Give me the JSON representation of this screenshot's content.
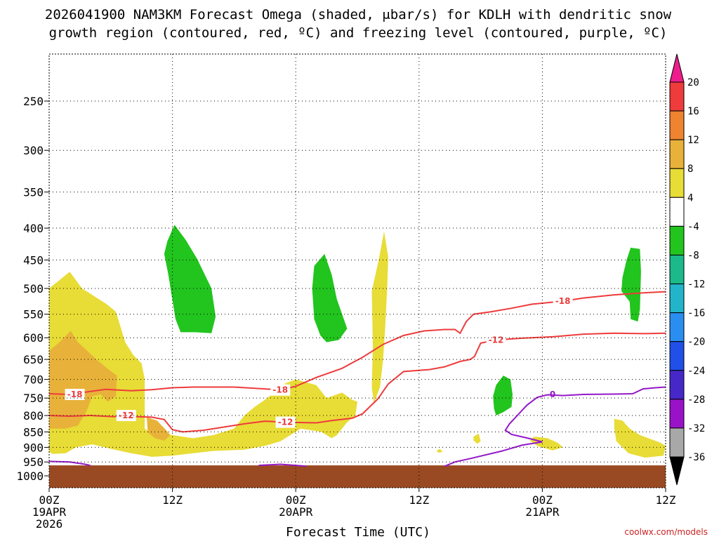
{
  "chart_data": {
    "type": "time-height cross section",
    "title_line1": "2026041900 NAM3KM Forecast Omega (shaded, μbar/s) for KDLH with dendritic snow",
    "title_line2": "growth region (contoured, red, ºC) and freezing level (contoured, purple, ºC)",
    "xlabel": "Forecast Time (UTC)",
    "credit": "coolwx.com/models",
    "x_range_hours": [
      0,
      60
    ],
    "y_range_hPa": [
      1000,
      200
    ],
    "y_scale": "log-pressure",
    "y_ticks": [
      250,
      300,
      350,
      400,
      450,
      500,
      550,
      600,
      650,
      700,
      750,
      800,
      850,
      900,
      950,
      1000
    ],
    "x_ticks": [
      {
        "h": 0,
        "l1": "00Z",
        "l2": "19APR",
        "l3": "2026"
      },
      {
        "h": 12,
        "l1": "12Z",
        "l2": "",
        "l3": ""
      },
      {
        "h": 24,
        "l1": "00Z",
        "l2": "20APR",
        "l3": ""
      },
      {
        "h": 36,
        "l1": "12Z",
        "l2": "",
        "l3": ""
      },
      {
        "h": 48,
        "l1": "00Z",
        "l2": "21APR",
        "l3": ""
      },
      {
        "h": 60,
        "l1": "12Z",
        "l2": "",
        "l3": ""
      }
    ],
    "grid": true,
    "colorbar": {
      "label_values": [
        "20",
        "16",
        "12",
        "8",
        "4",
        "-4",
        "-8",
        "-12",
        "-16",
        "-20",
        "-24",
        "-28",
        "-32",
        "-36"
      ],
      "colors": [
        "#ee1c8c",
        "#ee3b3b",
        "#ee8330",
        "#e8b23a",
        "#e8dc36",
        "#ffffff",
        "#22c41e",
        "#1cb98a",
        "#22b5c9",
        "#2a8ef0",
        "#2050e8",
        "#4628c8",
        "#9a12c8",
        "#a8a8a8",
        "#000000"
      ]
    },
    "ground_color": "#9a4a22",
    "omega_regions": [
      {
        "name": "ascent-green",
        "color": "#22c41e",
        "pts": [
          [
            11.5,
            420
          ],
          [
            12.2,
            395
          ],
          [
            13.3,
            418
          ],
          [
            14.4,
            448
          ],
          [
            15.8,
            500
          ],
          [
            16.2,
            555
          ],
          [
            15.8,
            590
          ],
          [
            14.2,
            588
          ],
          [
            12.8,
            588
          ],
          [
            12.3,
            560
          ],
          [
            11.6,
            475
          ],
          [
            11.2,
            440
          ]
        ]
      },
      {
        "name": "ascent-green",
        "color": "#22c41e",
        "pts": [
          [
            25.8,
            460
          ],
          [
            26.8,
            440
          ],
          [
            27.5,
            475
          ],
          [
            28.0,
            520
          ],
          [
            29.0,
            580
          ],
          [
            28.2,
            605
          ],
          [
            27.0,
            610
          ],
          [
            26.4,
            595
          ],
          [
            25.8,
            560
          ],
          [
            25.6,
            500
          ]
        ]
      },
      {
        "name": "ascent-green",
        "color": "#22c41e",
        "pts": [
          [
            43.2,
            745
          ],
          [
            43.5,
            715
          ],
          [
            44.2,
            690
          ],
          [
            44.9,
            700
          ],
          [
            45.1,
            740
          ],
          [
            45.0,
            775
          ],
          [
            44.2,
            790
          ],
          [
            43.5,
            800
          ],
          [
            43.3,
            780
          ]
        ]
      },
      {
        "name": "ascent-green",
        "color": "#22c41e",
        "pts": [
          [
            55.8,
            480
          ],
          [
            56.2,
            450
          ],
          [
            56.6,
            430
          ],
          [
            57.5,
            432
          ],
          [
            57.6,
            470
          ],
          [
            57.5,
            540
          ],
          [
            57.3,
            565
          ],
          [
            56.6,
            560
          ],
          [
            56.5,
            525
          ],
          [
            55.7,
            505
          ]
        ]
      },
      {
        "name": "descent-yellow",
        "color": "#e8dc36",
        "pts": [
          [
            0.0,
            500
          ],
          [
            1.0,
            485
          ],
          [
            2.0,
            470
          ],
          [
            3.2,
            500
          ],
          [
            5.6,
            530
          ],
          [
            6.5,
            545
          ],
          [
            7.4,
            610
          ],
          [
            8.2,
            640
          ],
          [
            9.0,
            660
          ],
          [
            9.3,
            700
          ],
          [
            9.3,
            840
          ],
          [
            10.0,
            855
          ],
          [
            12.0,
            860
          ],
          [
            14.0,
            870
          ],
          [
            16.0,
            860
          ],
          [
            18.0,
            840
          ],
          [
            19.0,
            800
          ],
          [
            20.0,
            775
          ],
          [
            21.0,
            755
          ],
          [
            23.0,
            710
          ],
          [
            24.0,
            700
          ],
          [
            26.0,
            715
          ],
          [
            27.0,
            750
          ],
          [
            28.5,
            735
          ],
          [
            29.5,
            755
          ],
          [
            30.0,
            760
          ],
          [
            29.8,
            800
          ],
          [
            29.0,
            820
          ],
          [
            28.0,
            860
          ],
          [
            27.5,
            870
          ],
          [
            26.5,
            850
          ],
          [
            24.5,
            840
          ],
          [
            22.5,
            880
          ],
          [
            21.0,
            895
          ],
          [
            19.0,
            908
          ],
          [
            16.0,
            912
          ],
          [
            12.0,
            928
          ],
          [
            10.0,
            932
          ],
          [
            8.0,
            920
          ],
          [
            6.0,
            905
          ],
          [
            4.2,
            890
          ],
          [
            2.6,
            900
          ],
          [
            1.6,
            920
          ],
          [
            0.3,
            922
          ],
          [
            0.0,
            915
          ]
        ]
      },
      {
        "name": "descent-yellow",
        "color": "#e8dc36",
        "pts": [
          [
            31.4,
            505
          ],
          [
            32.1,
            448
          ],
          [
            32.6,
            405
          ],
          [
            33.0,
            445
          ],
          [
            32.9,
            500
          ],
          [
            32.7,
            580
          ],
          [
            32.5,
            650
          ],
          [
            32.2,
            720
          ],
          [
            31.6,
            765
          ],
          [
            31.4,
            720
          ],
          [
            31.5,
            620
          ]
        ]
      },
      {
        "name": "descent-yellow",
        "color": "#e8dc36",
        "pts": [
          [
            37.7,
            912
          ],
          [
            38.0,
            905
          ],
          [
            38.3,
            915
          ],
          [
            37.9,
            918
          ]
        ]
      },
      {
        "name": "descent-yellow",
        "color": "#e8dc36",
        "pts": [
          [
            41.3,
            865
          ],
          [
            41.8,
            855
          ],
          [
            42.0,
            880
          ],
          [
            41.7,
            888
          ],
          [
            41.3,
            878
          ]
        ]
      },
      {
        "name": "descent-yellow",
        "color": "#e8dc36",
        "pts": [
          [
            47.2,
            865
          ],
          [
            48.5,
            870
          ],
          [
            49.5,
            885
          ],
          [
            50.0,
            900
          ],
          [
            49.0,
            910
          ],
          [
            47.5,
            895
          ],
          [
            46.8,
            878
          ]
        ]
      },
      {
        "name": "descent-yellow",
        "color": "#e8dc36",
        "pts": [
          [
            55.0,
            810
          ],
          [
            55.8,
            815
          ],
          [
            56.5,
            840
          ],
          [
            57.5,
            860
          ],
          [
            59.5,
            885
          ],
          [
            60.0,
            895
          ],
          [
            59.8,
            928
          ],
          [
            58.0,
            935
          ],
          [
            56.4,
            920
          ],
          [
            55.2,
            880
          ],
          [
            55.0,
            840
          ]
        ]
      },
      {
        "name": "descent-orange",
        "color": "#e8b23a",
        "pts": [
          [
            0.0,
            630
          ],
          [
            1.0,
            610
          ],
          [
            2.1,
            585
          ],
          [
            2.8,
            610
          ],
          [
            4.6,
            650
          ],
          [
            5.8,
            675
          ],
          [
            6.6,
            690
          ],
          [
            6.5,
            745
          ],
          [
            5.7,
            760
          ],
          [
            5.0,
            740
          ],
          [
            4.2,
            745
          ],
          [
            3.6,
            790
          ],
          [
            2.8,
            830
          ],
          [
            1.6,
            840
          ],
          [
            0.0,
            840
          ]
        ]
      },
      {
        "name": "descent-orange",
        "color": "#e8b23a",
        "pts": [
          [
            9.5,
            805
          ],
          [
            10.5,
            815
          ],
          [
            11.4,
            845
          ],
          [
            11.8,
            860
          ],
          [
            11.2,
            878
          ],
          [
            10.3,
            870
          ],
          [
            9.6,
            852
          ]
        ]
      }
    ],
    "contours": [
      {
        "name": "dgz -18C",
        "color": "#ee3b3b",
        "label": "-18",
        "label_at": [
          2.5,
          740
        ],
        "pts": [
          [
            0,
            738
          ],
          [
            2,
            740
          ],
          [
            4,
            732
          ],
          [
            5.5,
            726
          ],
          [
            8,
            730
          ],
          [
            10,
            727
          ],
          [
            12,
            722
          ],
          [
            14,
            720
          ],
          [
            18,
            720
          ],
          [
            21,
            725
          ],
          [
            22.5,
            728
          ],
          [
            24,
            718
          ],
          [
            26,
            695
          ],
          [
            28.5,
            672
          ],
          [
            30.5,
            645
          ],
          [
            32.5,
            615
          ],
          [
            34.5,
            595
          ],
          [
            36.5,
            585
          ],
          [
            38.5,
            582
          ],
          [
            39.5,
            582
          ],
          [
            40,
            590
          ],
          [
            40.6,
            565
          ],
          [
            41.3,
            550
          ],
          [
            43,
            545
          ],
          [
            45,
            538
          ],
          [
            47,
            530
          ],
          [
            50,
            524
          ],
          [
            52,
            518
          ],
          [
            55,
            512
          ],
          [
            58,
            508
          ],
          [
            60,
            506
          ]
        ]
      },
      {
        "name": "dgz -12C",
        "color": "#ee3b3b",
        "label": "-12",
        "label_at": [
          7.5,
          800
        ],
        "pts": [
          [
            0,
            800
          ],
          [
            2,
            802
          ],
          [
            4,
            800
          ],
          [
            6,
            803
          ],
          [
            8,
            803
          ],
          [
            10,
            805
          ],
          [
            11.2,
            812
          ],
          [
            12,
            843
          ],
          [
            13,
            850
          ],
          [
            15,
            845
          ],
          [
            17,
            835
          ],
          [
            19,
            825
          ],
          [
            21,
            817
          ],
          [
            23,
            820
          ],
          [
            26,
            822
          ],
          [
            27.5,
            815
          ],
          [
            29.5,
            808
          ],
          [
            30.5,
            795
          ],
          [
            32,
            752
          ],
          [
            33,
            712
          ],
          [
            34.5,
            680
          ],
          [
            37,
            675
          ],
          [
            38.5,
            668
          ],
          [
            40,
            655
          ],
          [
            41,
            650
          ],
          [
            41.4,
            643
          ],
          [
            42,
            612
          ],
          [
            43.5,
            605
          ],
          [
            46,
            601
          ],
          [
            49,
            598
          ],
          [
            52,
            592
          ],
          [
            55,
            590
          ],
          [
            58,
            591
          ],
          [
            60,
            590
          ]
        ]
      },
      {
        "name": "freezing-level 0C",
        "color": "#9418c8",
        "label": "0",
        "label_at": [
          49.0,
          740
        ],
        "pts": [
          [
            0,
            948
          ],
          [
            2,
            950
          ],
          [
            3.5,
            958
          ],
          [
            4,
            962
          ]
        ]
      },
      {
        "name": "freezing-level 0C",
        "color": "#9418c8",
        "label": "",
        "label_at": [],
        "pts": [
          [
            20.4,
            962
          ],
          [
            22.5,
            958
          ],
          [
            24,
            962
          ],
          [
            25,
            965
          ]
        ]
      },
      {
        "name": "freezing-level 0C",
        "color": "#9418c8",
        "label": "",
        "label_at": [],
        "pts": [
          [
            38.5,
            965
          ],
          [
            39.5,
            950
          ],
          [
            41,
            938
          ],
          [
            44,
            913
          ],
          [
            46,
            893
          ],
          [
            48,
            882
          ],
          [
            46.6,
            870
          ],
          [
            45,
            858
          ],
          [
            44.4,
            845
          ],
          [
            44.8,
            825
          ],
          [
            45.5,
            802
          ],
          [
            46.5,
            770
          ],
          [
            47.5,
            748
          ],
          [
            48.5,
            741
          ],
          [
            50,
            743
          ],
          [
            52,
            740
          ],
          [
            55,
            739
          ],
          [
            56.8,
            738
          ],
          [
            57.8,
            725
          ],
          [
            59,
            722
          ],
          [
            60,
            720
          ]
        ]
      }
    ]
  }
}
